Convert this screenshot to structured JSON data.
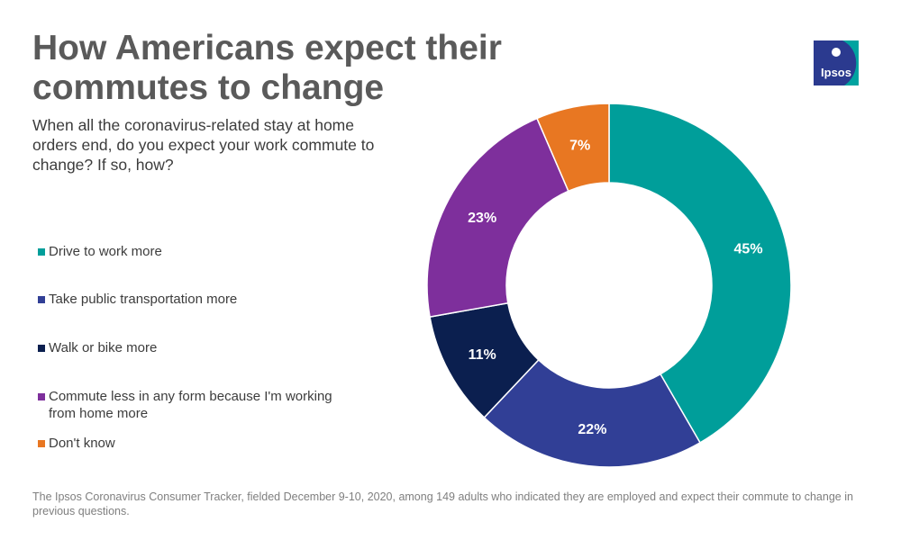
{
  "title": "How Americans expect their commutes to change",
  "subtitle": "When all the coronavirus-related stay at home orders end, do you expect your work commute to change? If so, how?",
  "logo": {
    "text": "Ipsos",
    "colors": [
      "#2b3a8f",
      "#00a3a0"
    ]
  },
  "footnote": "The Ipsos Coronavirus Consumer Tracker, fielded December 9-10, 2020, among 149 adults who indicated they are employed and expect their commute to change in previous questions.",
  "chart_data": {
    "type": "pie",
    "subtype": "donut",
    "title": "How Americans expect their commutes to change",
    "categories": [
      "Drive to work more",
      "Take public transportation more",
      "Walk or bike more",
      "Commute less in any form because I'm working from home more",
      "Don't know"
    ],
    "values": [
      45,
      22,
      11,
      23,
      7
    ],
    "labels": [
      "45%",
      "22%",
      "11%",
      "23%",
      "7%"
    ],
    "colors": [
      "#009e9a",
      "#313f96",
      "#0b1f4f",
      "#7e2f9c",
      "#e87722"
    ],
    "unit": "%",
    "legend": "left"
  }
}
